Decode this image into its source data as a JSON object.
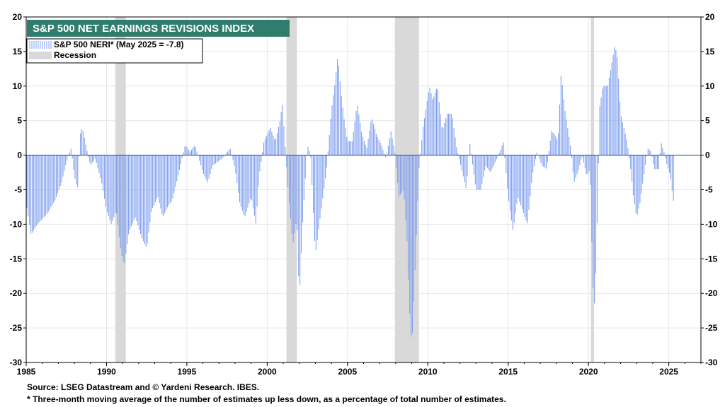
{
  "chart_data": {
    "type": "bar",
    "title": "S&P 500 NET EARNINGS REVISIONS INDEX",
    "legend": {
      "placement": "top-left",
      "series_label": "S&P 500 NERI* (May 2025 = -7.8)",
      "recession_label": "Recession"
    },
    "colors": {
      "bars": "#7f9ff0",
      "recession": "#d9d9d9",
      "title_bg": "#2e7d6e",
      "title_text": "#ffffff",
      "zero_line": "#1f3fa0",
      "grid": "#e6e6e6"
    },
    "xlim": [
      1985,
      2027
    ],
    "ylim": [
      -30,
      20
    ],
    "grid": true,
    "x_ticks": [
      "1985",
      "1990",
      "1995",
      "2000",
      "2005",
      "2010",
      "2015",
      "2020",
      "2025"
    ],
    "x_tick_values": [
      1985,
      1990,
      1995,
      2000,
      2005,
      2010,
      2015,
      2020,
      2025
    ],
    "y_ticks": [
      "20",
      "15",
      "10",
      "5",
      "0",
      "-5",
      "-10",
      "-15",
      "-20",
      "-25",
      "-30"
    ],
    "y_tick_values": [
      20,
      15,
      10,
      5,
      0,
      -5,
      -10,
      -15,
      -20,
      -25,
      -30
    ],
    "recessions": [
      [
        1990.55,
        1991.2
      ],
      [
        2001.2,
        2001.85
      ],
      [
        2007.95,
        2009.45
      ],
      [
        2020.15,
        2020.35
      ]
    ],
    "series_anchors": [
      [
        1985.0,
        -7
      ],
      [
        1985.3,
        -11.5
      ],
      [
        1985.7,
        -10
      ],
      [
        1986.3,
        -8.5
      ],
      [
        1986.8,
        -6.5
      ],
      [
        1987.2,
        -4
      ],
      [
        1987.5,
        -1
      ],
      [
        1987.8,
        1
      ],
      [
        1988.0,
        -3
      ],
      [
        1988.2,
        -5
      ],
      [
        1988.35,
        3
      ],
      [
        1988.5,
        4
      ],
      [
        1988.75,
        1
      ],
      [
        1989.0,
        -1.5
      ],
      [
        1989.3,
        -0.5
      ],
      [
        1989.7,
        -4
      ],
      [
        1990.0,
        -8
      ],
      [
        1990.3,
        -10
      ],
      [
        1990.6,
        -8
      ],
      [
        1990.9,
        -14
      ],
      [
        1991.1,
        -16
      ],
      [
        1991.4,
        -11
      ],
      [
        1991.8,
        -9
      ],
      [
        1992.2,
        -12
      ],
      [
        1992.5,
        -13.5
      ],
      [
        1992.8,
        -8
      ],
      [
        1993.2,
        -6
      ],
      [
        1993.5,
        -9
      ],
      [
        1993.8,
        -7.5
      ],
      [
        1994.1,
        -6.5
      ],
      [
        1994.5,
        -2.5
      ],
      [
        1994.9,
        1.5
      ],
      [
        1995.2,
        0.5
      ],
      [
        1995.5,
        1.5
      ],
      [
        1996.0,
        -2.5
      ],
      [
        1996.3,
        -4
      ],
      [
        1996.6,
        -1.5
      ],
      [
        1997.2,
        -0.5
      ],
      [
        1997.7,
        1
      ],
      [
        1998.0,
        -2
      ],
      [
        1998.3,
        -7
      ],
      [
        1998.6,
        -9
      ],
      [
        1999.0,
        -6
      ],
      [
        1999.3,
        -10
      ],
      [
        1999.5,
        -3
      ],
      [
        1999.8,
        2
      ],
      [
        2000.2,
        4
      ],
      [
        2000.5,
        2
      ],
      [
        2000.8,
        5
      ],
      [
        2000.95,
        7.5
      ],
      [
        2001.1,
        2
      ],
      [
        2001.3,
        -5
      ],
      [
        2001.6,
        -13
      ],
      [
        2001.85,
        -9
      ],
      [
        2002.0,
        -21
      ],
      [
        2002.2,
        -10
      ],
      [
        2002.5,
        1.5
      ],
      [
        2002.7,
        0
      ],
      [
        2003.0,
        -14.5
      ],
      [
        2003.3,
        -9
      ],
      [
        2003.7,
        -2
      ],
      [
        2004.0,
        6.5
      ],
      [
        2004.2,
        10
      ],
      [
        2004.4,
        14.5
      ],
      [
        2004.6,
        9
      ],
      [
        2004.8,
        5
      ],
      [
        2005.0,
        2
      ],
      [
        2005.3,
        2
      ],
      [
        2005.6,
        7.5
      ],
      [
        2005.9,
        3
      ],
      [
        2006.2,
        1
      ],
      [
        2006.5,
        5.5
      ],
      [
        2006.8,
        3
      ],
      [
        2007.1,
        1.5
      ],
      [
        2007.4,
        -0.5
      ],
      [
        2007.7,
        3.5
      ],
      [
        2007.95,
        0.5
      ],
      [
        2008.2,
        -6
      ],
      [
        2008.5,
        -5
      ],
      [
        2008.7,
        -12
      ],
      [
        2008.85,
        -22
      ],
      [
        2009.0,
        -28
      ],
      [
        2009.2,
        -17
      ],
      [
        2009.45,
        -2
      ],
      [
        2009.7,
        4
      ],
      [
        2009.9,
        7
      ],
      [
        2010.1,
        10
      ],
      [
        2010.3,
        8
      ],
      [
        2010.6,
        10
      ],
      [
        2010.9,
        3.5
      ],
      [
        2011.2,
        6
      ],
      [
        2011.5,
        6
      ],
      [
        2011.8,
        1
      ],
      [
        2012.1,
        -2
      ],
      [
        2012.4,
        -5
      ],
      [
        2012.6,
        2
      ],
      [
        2013.0,
        -5
      ],
      [
        2013.3,
        -5
      ],
      [
        2013.6,
        -1.5
      ],
      [
        2013.9,
        -2.5
      ],
      [
        2014.2,
        -1
      ],
      [
        2014.5,
        0.5
      ],
      [
        2014.7,
        2
      ],
      [
        2015.0,
        -6
      ],
      [
        2015.3,
        -11
      ],
      [
        2015.6,
        -6
      ],
      [
        2015.9,
        -8
      ],
      [
        2016.2,
        -10
      ],
      [
        2016.5,
        -3
      ],
      [
        2016.8,
        0.5
      ],
      [
        2017.1,
        -1.5
      ],
      [
        2017.4,
        -2
      ],
      [
        2017.7,
        3.5
      ],
      [
        2017.9,
        3
      ],
      [
        2018.1,
        2
      ],
      [
        2018.3,
        12
      ],
      [
        2018.5,
        7
      ],
      [
        2018.7,
        4
      ],
      [
        2018.9,
        1
      ],
      [
        2019.1,
        -4
      ],
      [
        2019.4,
        -2
      ],
      [
        2019.6,
        0
      ],
      [
        2019.9,
        -3
      ],
      [
        2020.1,
        -2
      ],
      [
        2020.2,
        -12
      ],
      [
        2020.3,
        -20
      ],
      [
        2020.4,
        -22
      ],
      [
        2020.55,
        -9
      ],
      [
        2020.7,
        7
      ],
      [
        2020.9,
        10
      ],
      [
        2021.2,
        10
      ],
      [
        2021.5,
        14
      ],
      [
        2021.65,
        16
      ],
      [
        2021.8,
        14
      ],
      [
        2022.0,
        6
      ],
      [
        2022.2,
        4
      ],
      [
        2022.4,
        2
      ],
      [
        2022.6,
        -1.5
      ],
      [
        2022.8,
        -6
      ],
      [
        2023.0,
        -9
      ],
      [
        2023.2,
        -7
      ],
      [
        2023.5,
        -2
      ],
      [
        2023.7,
        1
      ],
      [
        2023.9,
        0.5
      ],
      [
        2024.1,
        -2
      ],
      [
        2024.4,
        -2
      ],
      [
        2024.5,
        2
      ],
      [
        2024.7,
        0.5
      ],
      [
        2024.9,
        -1.5
      ],
      [
        2025.1,
        -3
      ],
      [
        2025.25,
        -6
      ],
      [
        2025.37,
        -7.8
      ]
    ]
  },
  "footer": {
    "source": "Source: LSEG Datastream and © Yardeni Research. IBES.",
    "footnote": "* Three-month moving average of the number of estimates up less down, as a percentage of total number of estimates."
  }
}
